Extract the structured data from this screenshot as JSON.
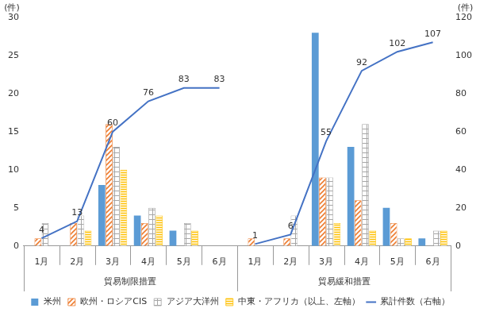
{
  "chart_data": {
    "type": "bar",
    "categories": [
      "1月",
      "2月",
      "3月",
      "4月",
      "5月",
      "6月",
      "1月",
      "2月",
      "3月",
      "4月",
      "5月",
      "6月"
    ],
    "category_groups": [
      "貿易制限措置",
      "貿易制限措置",
      "貿易制限措置",
      "貿易制限措置",
      "貿易制限措置",
      "貿易制限措置",
      "貿易緩和措置",
      "貿易緩和措置",
      "貿易緩和措置",
      "貿易緩和措置",
      "貿易緩和措置",
      "貿易緩和措置"
    ],
    "series": [
      {
        "name": "米州",
        "color": "#5b9bd5",
        "values": [
          0,
          0,
          8,
          4,
          2,
          0,
          0,
          0,
          28,
          13,
          5,
          1
        ]
      },
      {
        "name": "欧州・ロシアCIS",
        "color": "#ed7d31",
        "values": [
          1,
          3,
          16,
          3,
          0,
          0,
          1,
          1,
          9,
          6,
          3,
          0
        ]
      },
      {
        "name": "アジア大洋州",
        "color": "#a5a5a5",
        "values": [
          3,
          4,
          13,
          5,
          3,
          0,
          0,
          4,
          9,
          16,
          1,
          2
        ]
      },
      {
        "name": "中東・アフリカ（以上、左軸）",
        "color": "#ffc000",
        "values": [
          0,
          2,
          10,
          4,
          2,
          0,
          0,
          0,
          3,
          2,
          1,
          2
        ]
      },
      {
        "name": "累計件数（右軸）",
        "type": "line",
        "axis": "y2",
        "color": "#4472c4",
        "data_labels": true,
        "values": [
          4,
          13,
          60,
          76,
          83,
          83,
          1,
          6,
          55,
          92,
          102,
          107
        ]
      }
    ],
    "ylabel": "(件)",
    "y2label": "(件)",
    "ylim": [
      0,
      30
    ],
    "yticks": [
      0,
      5,
      10,
      15,
      20,
      25,
      30
    ],
    "y2lim": [
      0,
      120
    ],
    "y2ticks": [
      0,
      20,
      40,
      60,
      80,
      100,
      120
    ],
    "grid": false,
    "legend": "bottom"
  }
}
